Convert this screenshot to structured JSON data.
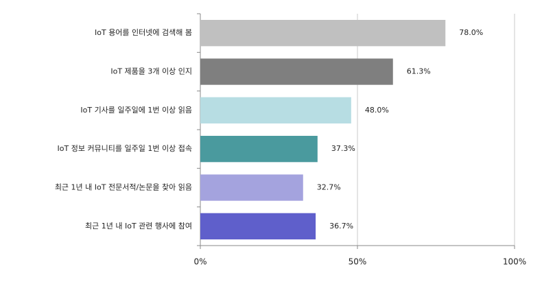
{
  "chart_data": {
    "type": "bar",
    "orientation": "horizontal",
    "categories": [
      "IoT 용어를 인터넷에 검색해 봄",
      "IoT 제품을 3개 이상 인지",
      "IoT 기사를 일주일에 1번 이상 읽음",
      "IoT 정보 커뮤니티를 일주일 1번 이상 접속",
      "최근 1년 내 IoT 전문서적/논문을 찾아 읽음",
      "최근 1년 내 IoT 관련 행사에 참여"
    ],
    "values": [
      78.0,
      61.3,
      48.0,
      37.3,
      32.7,
      36.7
    ],
    "value_labels": [
      "78.0%",
      "61.3%",
      "48.0%",
      "37.3%",
      "32.7%",
      "36.7%"
    ],
    "colors": [
      "#c0c0c0",
      "#7f7f7f",
      "#b7dde3",
      "#4a9a9e",
      "#a4a3de",
      "#5f5fcb"
    ],
    "xlim": [
      0,
      100
    ],
    "xticks": [
      {
        "value": 0,
        "label": "0%"
      },
      {
        "value": 50,
        "label": "50%"
      },
      {
        "value": 100,
        "label": "100%"
      }
    ],
    "grid": true
  }
}
